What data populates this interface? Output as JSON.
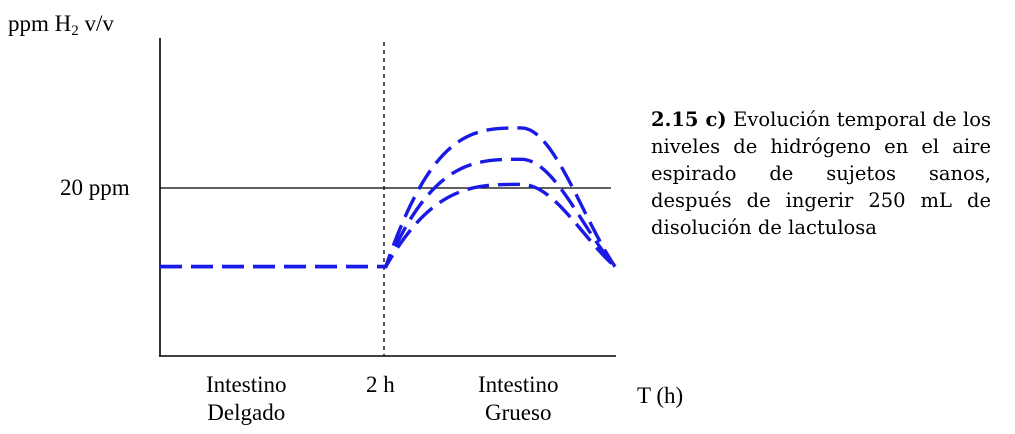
{
  "chart_data": {
    "type": "line",
    "ylabel_prefix": "ppm H",
    "ylabel_sub": "2",
    "ylabel_suffix": " v/v",
    "xlabel": "T (h)",
    "reference_line": {
      "y": 20,
      "label": "20 ppm"
    },
    "divider": {
      "x": 2,
      "label": "2 h"
    },
    "regions": [
      {
        "line1": "Intestino",
        "line2": "Delgado"
      },
      {
        "line1": "Intestino",
        "line2": "Grueso"
      }
    ],
    "xlim": [
      0,
      4.03
    ],
    "ylim": [
      0,
      37.8
    ],
    "series": [
      {
        "x": [
          0,
          2,
          3.2,
          4.03
        ],
        "y": [
          10,
          10,
          25.5,
          10
        ],
        "dashed": true,
        "color": "#1a1ae6"
      },
      {
        "x": [
          0,
          2,
          3.2,
          4.03
        ],
        "y": [
          10,
          10,
          22.0,
          10
        ],
        "dashed": true,
        "color": "#1a1ae6"
      },
      {
        "x": [
          0,
          2,
          3.2,
          4.03
        ],
        "y": [
          10,
          10,
          19.2,
          10
        ],
        "dashed": true,
        "color": "#1a1ae6"
      }
    ]
  },
  "caption": {
    "number": "2.15 c)",
    "text": " Evolución temporal de los niveles de hidrógeno en el aire espirado de sujetos sanos, después de ingerir 250 mL de disolución de lactulosa"
  }
}
